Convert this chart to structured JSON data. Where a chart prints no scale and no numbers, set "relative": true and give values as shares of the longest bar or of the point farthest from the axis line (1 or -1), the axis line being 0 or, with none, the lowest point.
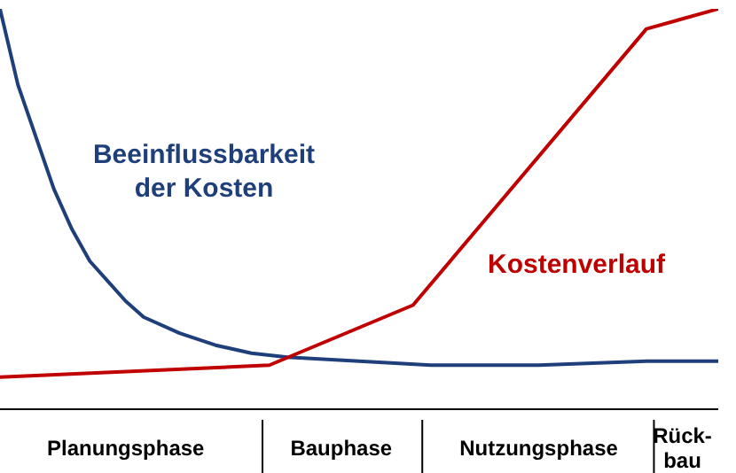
{
  "chart_data": {
    "type": "line",
    "relative": true,
    "categories": [
      null,
      null,
      null,
      null,
      null,
      null,
      null,
      "Planungsphase",
      null,
      null,
      null,
      null,
      null,
      null,
      null,
      null,
      null,
      null,
      null,
      "Bauphase",
      null,
      null,
      null,
      null,
      null,
      null,
      null,
      null,
      null,
      null,
      "Nutzungsphase",
      null,
      null,
      null,
      null,
      null,
      null,
      null,
      "Rück-bau",
      null,
      null
    ],
    "series": [
      {
        "name": "Beeinflussbarkeit der Kosten",
        "color": "#1f3f7a",
        "values": [
          1,
          0.81,
          0.68,
          0.55,
          0.45,
          0.37,
          0.32,
          0.27,
          0.23,
          null,
          0.19,
          null,
          0.16,
          null,
          0.14,
          null,
          0.13,
          null,
          null,
          null,
          0.12,
          null,
          null,
          null,
          0.11,
          null,
          null,
          null,
          null,
          null,
          0.11,
          null,
          null,
          null,
          null,
          null,
          0.12,
          null,
          null,
          null,
          0.12
        ]
      },
      {
        "name": "Kostenverlauf",
        "color": "#c00000",
        "values": [
          0.08,
          null,
          null,
          null,
          null,
          null,
          null,
          null,
          null,
          null,
          null,
          null,
          null,
          null,
          null,
          0.11,
          null,
          null,
          null,
          null,
          null,
          null,
          null,
          0.26,
          null,
          null,
          null,
          null,
          null,
          null,
          null,
          null,
          null,
          null,
          null,
          null,
          0.95,
          null,
          null,
          null,
          1
        ]
      }
    ],
    "grid": false,
    "legend": false,
    "marker": "none",
    "line_style": "solid"
  }
}
